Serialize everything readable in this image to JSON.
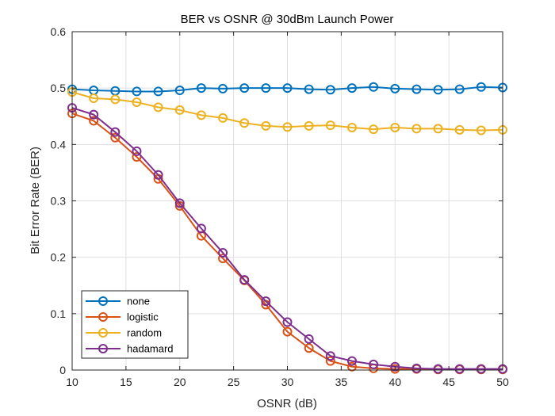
{
  "chart_data": {
    "type": "line",
    "title": "BER vs OSNR @ 30dBm Launch Power",
    "xlabel": "OSNR (dB)",
    "ylabel": "Bit Error Rate (BER)",
    "xlim": [
      10,
      50
    ],
    "ylim": [
      0,
      0.6
    ],
    "xticks": [
      10,
      15,
      20,
      25,
      30,
      35,
      40,
      45,
      50
    ],
    "yticks": [
      0,
      0.1,
      0.2,
      0.3,
      0.4,
      0.5,
      0.6
    ],
    "grid": true,
    "legend_position": "bottom-left",
    "x": [
      10,
      12,
      14,
      16,
      18,
      20,
      22,
      24,
      26,
      28,
      30,
      32,
      34,
      36,
      38,
      40,
      42,
      44,
      46,
      48,
      50
    ],
    "series": [
      {
        "name": "none",
        "color": "#0072BD",
        "values": [
          0.498,
          0.496,
          0.495,
          0.494,
          0.494,
          0.496,
          0.5,
          0.499,
          0.5,
          0.5,
          0.5,
          0.498,
          0.497,
          0.5,
          0.502,
          0.499,
          0.498,
          0.497,
          0.498,
          0.502,
          0.501
        ]
      },
      {
        "name": "logistic",
        "color": "#D95319",
        "values": [
          0.455,
          0.442,
          0.412,
          0.378,
          0.339,
          0.291,
          0.238,
          0.198,
          0.159,
          0.116,
          0.068,
          0.039,
          0.016,
          0.006,
          0.003,
          0.002,
          0.002,
          0.001,
          0.001,
          0.001,
          0.001
        ]
      },
      {
        "name": "random",
        "color": "#EDB120",
        "values": [
          0.493,
          0.482,
          0.48,
          0.475,
          0.466,
          0.461,
          0.452,
          0.447,
          0.438,
          0.433,
          0.431,
          0.433,
          0.434,
          0.43,
          0.427,
          0.43,
          0.428,
          0.428,
          0.426,
          0.425,
          0.426
        ]
      },
      {
        "name": "hadamard",
        "color": "#7E2F8E",
        "values": [
          0.465,
          0.453,
          0.422,
          0.388,
          0.346,
          0.296,
          0.251,
          0.208,
          0.16,
          0.122,
          0.085,
          0.055,
          0.025,
          0.016,
          0.01,
          0.006,
          0.003,
          0.002,
          0.002,
          0.002,
          0.002
        ]
      }
    ]
  }
}
